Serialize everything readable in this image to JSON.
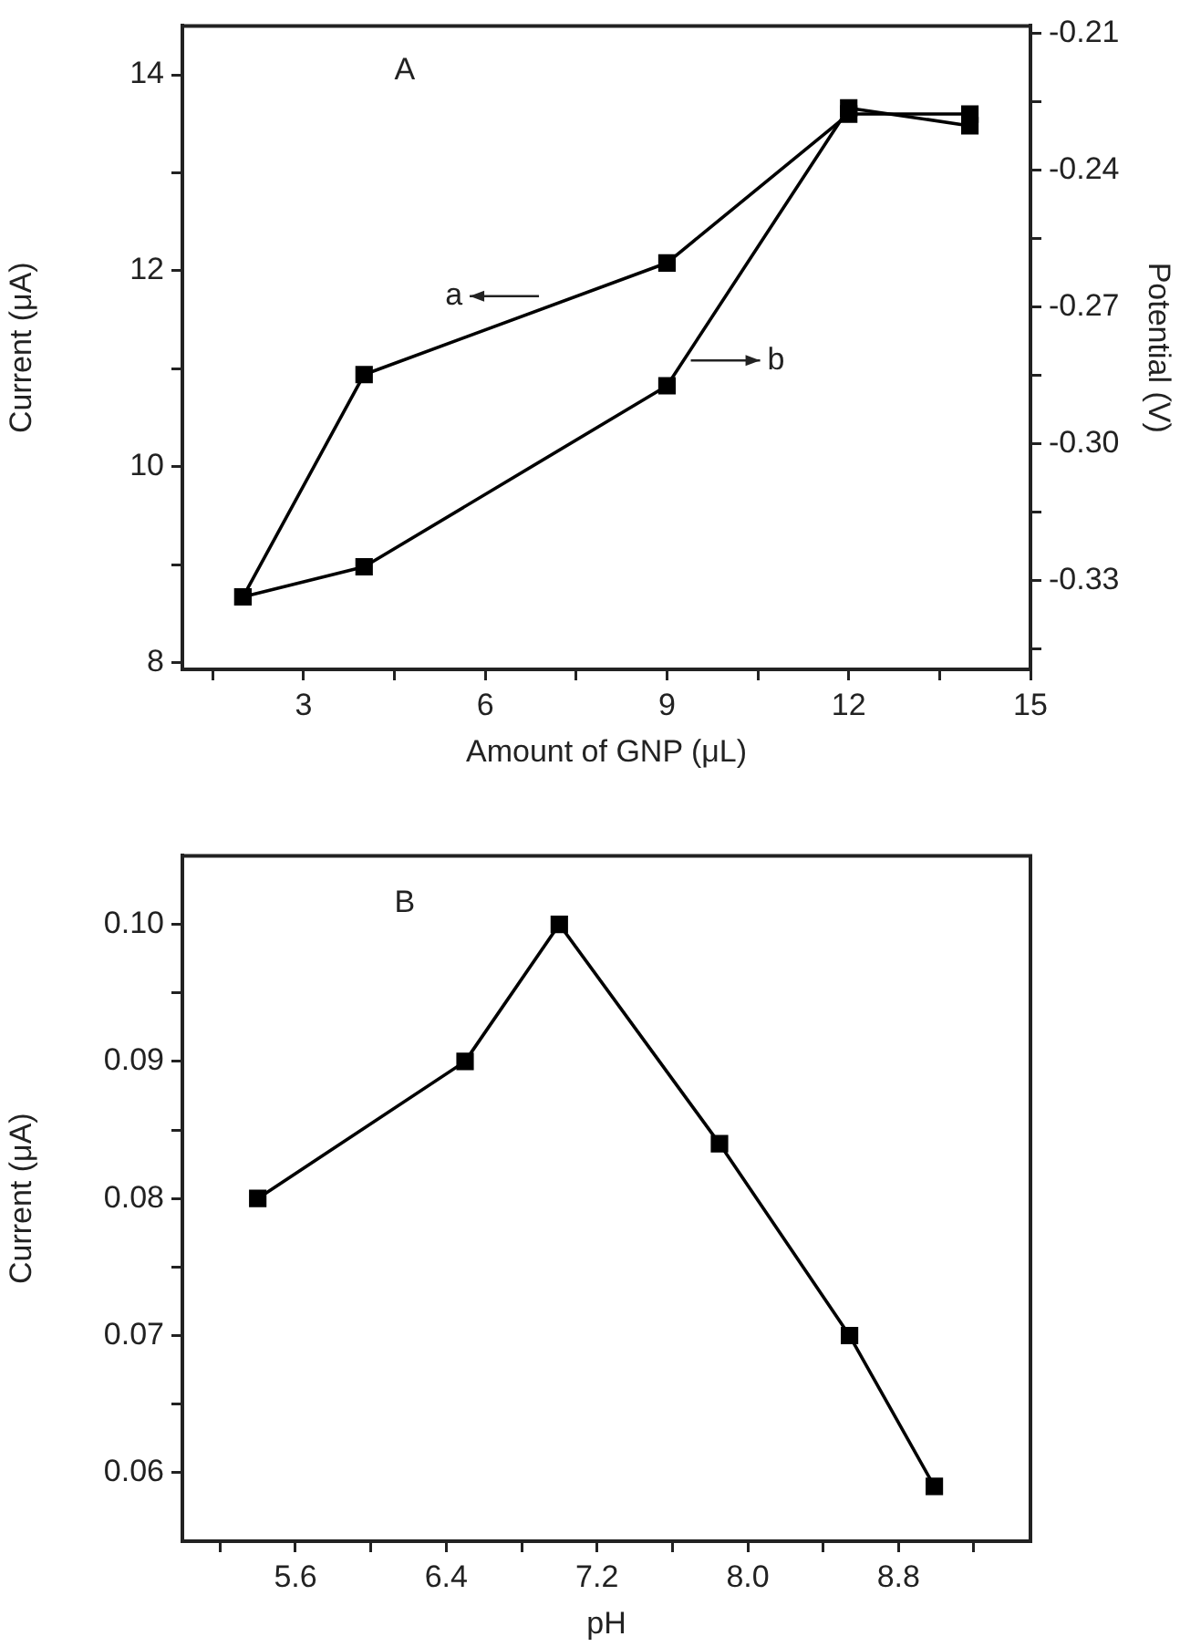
{
  "chart_data": [
    {
      "type": "line",
      "xlabel": "Amount of GNP (μL)",
      "ylabel": "Current (μA)",
      "y2label": "Potential (V)",
      "annotations": [
        "A",
        "a",
        "b"
      ],
      "x": [
        2,
        4,
        9,
        12,
        14
      ],
      "series": [
        {
          "color": "#000000",
          "values": [
            8.67,
            10.94,
            12.08,
            13.6,
            13.6
          ]
        },
        {
          "color": "#000000",
          "axis": "y2",
          "values": [
            -0.3336,
            -0.327,
            -0.2873,
            -0.2264,
            -0.2303
          ]
        }
      ],
      "xlim": [
        1,
        15
      ],
      "xticks": [
        {
          "value": 1.5,
          "label": null
        },
        3,
        {
          "value": 4.5,
          "label": null
        },
        6,
        {
          "value": 7.5,
          "label": null
        },
        9,
        {
          "value": 10.5,
          "label": null
        },
        12,
        {
          "value": 13.5,
          "label": null
        },
        15
      ],
      "ylim": [
        7.93,
        14.5
      ],
      "yticks": [
        8,
        {
          "value": 9,
          "label": null
        },
        10,
        {
          "value": 11,
          "label": null
        },
        12,
        {
          "value": 13,
          "label": null
        },
        14
      ],
      "y2lim": [
        -0.3495,
        -0.2084
      ],
      "y2ticks": [
        -0.21,
        {
          "value": -0.225,
          "label": null
        },
        -0.24,
        {
          "value": -0.255,
          "label": null
        },
        "-0.27",
        {
          "value": -0.285,
          "label": null
        },
        {
          "value": -0.3,
          "label": "-0.30"
        },
        {
          "value": -0.315,
          "label": null
        },
        -0.33,
        {
          "value": -0.345,
          "label": null
        }
      ],
      "marker": "square",
      "grid": false,
      "legend": false
    },
    {
      "type": "line",
      "xlabel": "pH",
      "ylabel": "Current (μA)",
      "annotations": [
        "B"
      ],
      "x": [
        5.4,
        6.5,
        7.0,
        7.85,
        8.54,
        8.99
      ],
      "series": [
        {
          "color": "#000000",
          "values": [
            0.08,
            0.09,
            0.1,
            0.084,
            0.07,
            0.059
          ]
        }
      ],
      "xlim": [
        5,
        9.5
      ],
      "xticks": [
        {
          "value": 5.2,
          "label": null
        },
        5.6,
        {
          "value": 6.0,
          "label": null
        },
        6.4,
        {
          "value": 6.8,
          "label": null
        },
        7.2,
        {
          "value": 7.6,
          "label": null
        },
        {
          "value": 8.0,
          "label": "8.0"
        },
        {
          "value": 8.4,
          "label": null
        },
        8.8,
        {
          "value": 9.2,
          "label": null
        }
      ],
      "ylim": [
        0.055,
        0.105
      ],
      "yticks": [
        {
          "value": 0.06,
          "label": "0.06"
        },
        {
          "value": 0.065,
          "label": null
        },
        {
          "value": 0.07,
          "label": "0.07"
        },
        {
          "value": 0.075,
          "label": null
        },
        {
          "value": 0.08,
          "label": "0.08"
        },
        {
          "value": 0.085,
          "label": null
        },
        {
          "value": 0.09,
          "label": "0.09"
        },
        {
          "value": 0.095,
          "label": null
        },
        {
          "value": 0.1,
          "label": "0.10"
        }
      ],
      "marker": "square",
      "grid": false,
      "legend": false
    }
  ]
}
